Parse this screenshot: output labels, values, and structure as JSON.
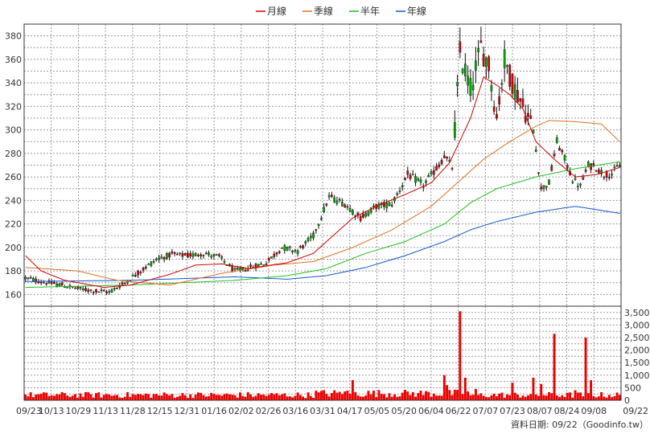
{
  "chart_data": {
    "type": "candlestick",
    "legend": [
      {
        "name": "月線",
        "color": "#cc0000"
      },
      {
        "name": "季線",
        "color": "#e07020"
      },
      {
        "name": "半年",
        "color": "#22bb22"
      },
      {
        "name": "年線",
        "color": "#1155cc"
      }
    ],
    "x_labels": [
      "09/23",
      "10/13",
      "10/29",
      "11/13",
      "11/28",
      "12/15",
      "12/31",
      "01/16",
      "02/02",
      "02/26",
      "03/16",
      "03/31",
      "04/17",
      "05/05",
      "05/20",
      "06/04",
      "06/22",
      "07/07",
      "07/23",
      "08/07",
      "08/24",
      "09/08",
      "09/22"
    ],
    "price_axis": {
      "ylim": [
        150,
        390
      ],
      "ticks": [
        160,
        180,
        200,
        220,
        240,
        260,
        280,
        300,
        320,
        340,
        360,
        380
      ]
    },
    "volume_axis": {
      "ylim": [
        0,
        3750
      ],
      "ticks": [
        "0",
        "500",
        "1,000",
        "1,500",
        "2,000",
        "2,500",
        "3,000",
        "3,500"
      ]
    },
    "credit": "資料日期: 09/22（Goodinfo.tw）",
    "price_anchors": [
      [
        0,
        174
      ],
      [
        8,
        170
      ],
      [
        14,
        168
      ],
      [
        20,
        165
      ],
      [
        26,
        163
      ],
      [
        32,
        162
      ],
      [
        38,
        170
      ],
      [
        44,
        180
      ],
      [
        50,
        190
      ],
      [
        56,
        194
      ],
      [
        62,
        193
      ],
      [
        68,
        195
      ],
      [
        74,
        192
      ],
      [
        80,
        180
      ],
      [
        86,
        183
      ],
      [
        92,
        187
      ],
      [
        98,
        200
      ],
      [
        104,
        197
      ],
      [
        110,
        210
      ],
      [
        116,
        243
      ],
      [
        122,
        237
      ],
      [
        128,
        225
      ],
      [
        134,
        235
      ],
      [
        140,
        237
      ],
      [
        146,
        262
      ],
      [
        152,
        253
      ],
      [
        158,
        270
      ],
      [
        160,
        278
      ],
      [
        163,
        268
      ],
      [
        166,
        365
      ],
      [
        170,
        335
      ],
      [
        174,
        370
      ],
      [
        177,
        355
      ],
      [
        180,
        310
      ],
      [
        183,
        360
      ],
      [
        186,
        340
      ],
      [
        190,
        320
      ],
      [
        194,
        300
      ],
      [
        197,
        250
      ],
      [
        200,
        255
      ],
      [
        203,
        290
      ],
      [
        206,
        275
      ],
      [
        209,
        258
      ],
      [
        212,
        252
      ],
      [
        215,
        270
      ],
      [
        218,
        268
      ],
      [
        221,
        262
      ],
      [
        224,
        263
      ],
      [
        227,
        270
      ]
    ],
    "ma_month": [
      [
        0,
        193
      ],
      [
        6,
        180
      ],
      [
        15,
        172
      ],
      [
        30,
        166
      ],
      [
        40,
        168
      ],
      [
        55,
        177
      ],
      [
        65,
        185
      ],
      [
        75,
        186
      ],
      [
        85,
        182
      ],
      [
        100,
        187
      ],
      [
        110,
        195
      ],
      [
        125,
        225
      ],
      [
        135,
        236
      ],
      [
        145,
        245
      ],
      [
        155,
        255
      ],
      [
        162,
        272
      ],
      [
        170,
        310
      ],
      [
        175,
        345
      ],
      [
        180,
        338
      ],
      [
        185,
        330
      ],
      [
        190,
        318
      ],
      [
        195,
        290
      ],
      [
        202,
        275
      ],
      [
        210,
        260
      ],
      [
        218,
        262
      ],
      [
        227,
        268
      ]
    ],
    "ma_quarter": [
      [
        0,
        183
      ],
      [
        20,
        180
      ],
      [
        35,
        172
      ],
      [
        55,
        168
      ],
      [
        75,
        178
      ],
      [
        95,
        185
      ],
      [
        110,
        188
      ],
      [
        125,
        200
      ],
      [
        140,
        215
      ],
      [
        155,
        235
      ],
      [
        165,
        255
      ],
      [
        175,
        275
      ],
      [
        185,
        290
      ],
      [
        195,
        303
      ],
      [
        200,
        308
      ],
      [
        210,
        307
      ],
      [
        220,
        305
      ],
      [
        227,
        290
      ]
    ],
    "ma_half": [
      [
        0,
        166
      ],
      [
        40,
        168
      ],
      [
        80,
        172
      ],
      [
        100,
        176
      ],
      [
        115,
        182
      ],
      [
        130,
        195
      ],
      [
        145,
        205
      ],
      [
        160,
        220
      ],
      [
        170,
        238
      ],
      [
        180,
        250
      ],
      [
        195,
        260
      ],
      [
        210,
        267
      ],
      [
        227,
        273
      ]
    ],
    "ma_year": [
      [
        0,
        171
      ],
      [
        40,
        172
      ],
      [
        80,
        175
      ],
      [
        100,
        173
      ],
      [
        115,
        176
      ],
      [
        130,
        183
      ],
      [
        145,
        193
      ],
      [
        160,
        205
      ],
      [
        170,
        215
      ],
      [
        180,
        222
      ],
      [
        195,
        230
      ],
      [
        210,
        235
      ],
      [
        227,
        229
      ]
    ],
    "volume_baseline": 220,
    "volume_spikes": [
      [
        122,
        350
      ],
      [
        125,
        800
      ],
      [
        160,
        1000
      ],
      [
        161,
        600
      ],
      [
        166,
        3550
      ],
      [
        168,
        900
      ],
      [
        172,
        450
      ],
      [
        186,
        700
      ],
      [
        194,
        900
      ],
      [
        197,
        650
      ],
      [
        202,
        2650
      ],
      [
        210,
        400
      ],
      [
        214,
        2500
      ],
      [
        216,
        800
      ]
    ]
  }
}
